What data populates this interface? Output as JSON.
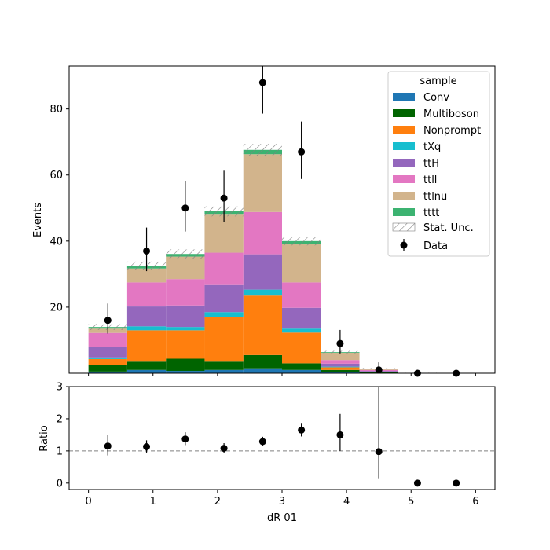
{
  "chart_data": [
    {
      "type": "bar",
      "stacked": true,
      "ylabel": "Events",
      "ylim": [
        0,
        93
      ],
      "xlim": [
        -0.3,
        6.3
      ],
      "bin_edges": [
        0.0,
        0.6,
        1.2,
        1.8,
        2.4,
        3.0,
        3.6,
        4.2,
        4.8,
        5.4,
        6.0
      ],
      "yticks": [
        20,
        40,
        60,
        80
      ],
      "xticks": [
        0,
        1,
        2,
        3,
        4,
        5,
        6
      ],
      "legend": {
        "title": "sample",
        "placement": "top-right",
        "stat_unc_label": "Stat. Unc.",
        "data_label": "Data"
      },
      "series": [
        {
          "name": "Conv",
          "color": "#1f77b4",
          "values": [
            0.5,
            1.0,
            0.7,
            1.0,
            1.5,
            1.0,
            0.4,
            0.1,
            0.0,
            0.0
          ]
        },
        {
          "name": "Multiboson",
          "color": "#006400",
          "values": [
            2.0,
            2.5,
            3.7,
            2.5,
            4.0,
            2.0,
            0.6,
            0.2,
            0.0,
            0.0
          ]
        },
        {
          "name": "Nonprompt",
          "color": "#ff7f0e",
          "values": [
            1.8,
            9.5,
            8.6,
            13.5,
            18.0,
            9.3,
            0.8,
            0.2,
            0.0,
            0.0
          ]
        },
        {
          "name": "tXq",
          "color": "#17becf",
          "values": [
            0.5,
            1.2,
            1.0,
            1.5,
            1.8,
            1.2,
            0.2,
            0.0,
            0.0,
            0.0
          ]
        },
        {
          "name": "ttH",
          "color": "#9467bd",
          "values": [
            3.2,
            6.0,
            6.5,
            8.2,
            10.7,
            6.3,
            0.9,
            0.2,
            0.0,
            0.0
          ]
        },
        {
          "name": "ttll",
          "color": "#e377c2",
          "values": [
            4.2,
            7.3,
            8.0,
            9.8,
            12.8,
            7.7,
            1.1,
            0.3,
            0.05,
            0.0
          ]
        },
        {
          "name": "ttlnu",
          "color": "#d2b48c",
          "values": [
            1.3,
            4.2,
            6.8,
            11.5,
            17.5,
            11.5,
            2.2,
            0.3,
            0.05,
            0.0
          ]
        },
        {
          "name": "tttt",
          "color": "#3cb371",
          "values": [
            0.5,
            0.8,
            0.8,
            1.0,
            1.3,
            1.0,
            0.2,
            0.1,
            0.0,
            0.0
          ]
        }
      ],
      "stat_unc": [
        0.9,
        1.3,
        1.4,
        1.5,
        1.8,
        1.3,
        0.4,
        0.2,
        0.05,
        0.0
      ],
      "data": {
        "x": [
          0.3,
          0.9,
          1.5,
          2.1,
          2.7,
          3.3,
          3.9,
          4.5,
          5.1,
          5.7
        ],
        "y": [
          16,
          37,
          50,
          53,
          88,
          67,
          9,
          1,
          0,
          0
        ],
        "err_low": [
          4.0,
          6.1,
          7.1,
          7.3,
          9.4,
          8.2,
          3.0,
          1.0,
          0,
          0
        ],
        "err_high": [
          5.1,
          7.1,
          8.1,
          8.3,
          10.4,
          9.2,
          4.1,
          2.3,
          0,
          0
        ]
      }
    },
    {
      "type": "scatter",
      "xlabel": "dR 01",
      "ylabel": "Ratio",
      "ylim": [
        -0.2,
        3.0
      ],
      "xlim": [
        -0.3,
        6.3
      ],
      "yticks": [
        0,
        1,
        2,
        3
      ],
      "xticks": [
        0,
        1,
        2,
        3,
        4,
        5,
        6
      ],
      "reference_line": 1.0,
      "points": {
        "x": [
          0.3,
          0.9,
          1.5,
          2.1,
          2.7,
          3.3,
          3.9,
          4.5,
          5.1,
          5.7
        ],
        "y": [
          1.15,
          1.13,
          1.37,
          1.08,
          1.29,
          1.65,
          1.5,
          0.98,
          0.0,
          0.0
        ],
        "err_low": [
          0.29,
          0.18,
          0.19,
          0.15,
          0.14,
          0.2,
          0.5,
          0.83,
          0,
          0
        ],
        "err_high": [
          0.35,
          0.2,
          0.21,
          0.16,
          0.15,
          0.22,
          0.65,
          2.3,
          0,
          0
        ]
      }
    }
  ]
}
